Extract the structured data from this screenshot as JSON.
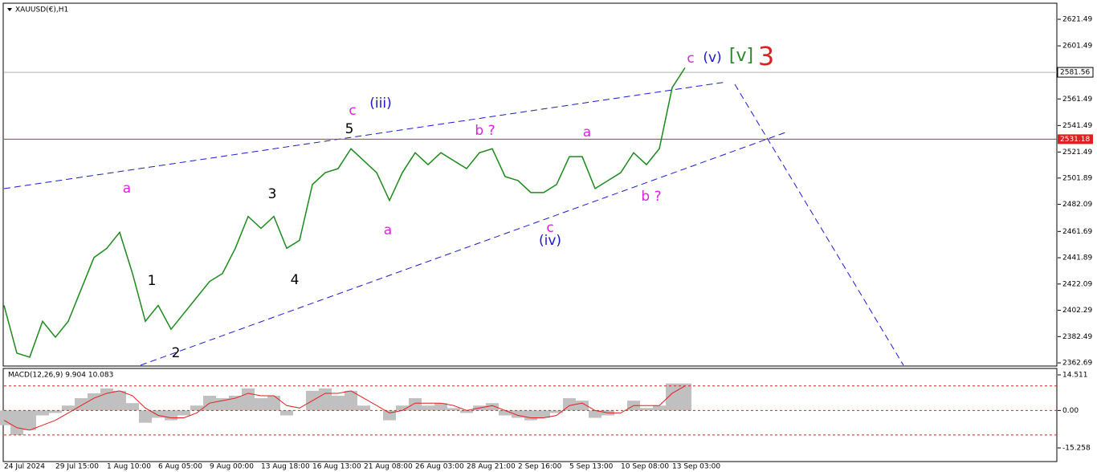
{
  "chart_data": [
    {
      "type": "line",
      "title": "XAUUSD(€),H1",
      "color": "#1a8a1a",
      "categories": [
        "24 Jul 2024",
        null,
        null,
        null,
        "29 Jul 15:00",
        null,
        null,
        null,
        "1 Aug 10:00",
        null,
        null,
        null,
        "6 Aug 05:00",
        null,
        null,
        null,
        "9 Aug 00:00",
        null,
        null,
        null,
        "13 Aug 18:00",
        null,
        null,
        null,
        "16 Aug 13:00",
        null,
        null,
        null,
        "21 Aug 08:00",
        null,
        null,
        null,
        "26 Aug 03:00",
        null,
        null,
        null,
        "28 Aug 21:00",
        null,
        null,
        null,
        "2 Sep 16:00",
        null,
        null,
        null,
        "5 Sep 13:00",
        null,
        null,
        null,
        "10 Sep 08:00",
        null,
        null,
        null,
        "13 Sep 03:00",
        null
      ],
      "values": [
        2406,
        2370,
        2367,
        2394,
        2382,
        2394,
        2418,
        2442,
        2449,
        2461,
        2430,
        2394,
        2406,
        2388,
        2400,
        2412,
        2424,
        2430,
        2449,
        2473,
        2464,
        2473,
        2449,
        2455,
        2497,
        2506,
        2509,
        2524,
        2515,
        2506,
        2485,
        2506,
        2521,
        2512,
        2521,
        2515,
        2509,
        2521,
        2524,
        2503,
        2500,
        2491,
        2491,
        2497,
        2518,
        2518,
        2494,
        2500,
        2506,
        2521,
        2512,
        2524,
        2570,
        2585
      ],
      "ylim": [
        2360.9,
        2633.0
      ],
      "yticks": [
        2621.49,
        2601.49,
        2561.49,
        2541.49,
        2521.49,
        2501.89,
        2482.09,
        2461.69,
        2441.89,
        2422.09,
        2402.29,
        2382.49,
        2362.69
      ],
      "current_price": 2581.56,
      "level": 2531.18,
      "level_color": "#e02020",
      "annotations": [
        {
          "text": "a",
          "color": "#e020e0"
        },
        {
          "text": "1",
          "color": "#000000"
        },
        {
          "text": "2",
          "color": "#000000"
        },
        {
          "text": "3",
          "color": "#000000"
        },
        {
          "text": "4",
          "color": "#000000"
        },
        {
          "text": "5",
          "color": "#000000"
        },
        {
          "text": "c",
          "color": "#e020e0"
        },
        {
          "text": "(iii)",
          "color": "#1a1acc"
        },
        {
          "text": "a",
          "color": "#e020e0"
        },
        {
          "text": "b ?",
          "color": "#e020e0"
        },
        {
          "text": "a",
          "color": "#e020e0"
        },
        {
          "text": "c",
          "color": "#e020e0"
        },
        {
          "text": "(iv)",
          "color": "#1a1acc"
        },
        {
          "text": "b ?",
          "color": "#e020e0"
        },
        {
          "text": "c",
          "color": "#e020e0"
        },
        {
          "text": "(v)",
          "color": "#1a1acc"
        },
        {
          "text": "[v]",
          "color": "#2a8a2a"
        },
        {
          "text": "3",
          "color": "#e02020"
        }
      ]
    },
    {
      "type": "bar",
      "title": "MACD(12,26,9) 9.904 10.083",
      "color": "#c0c0c0",
      "values": [
        -6,
        -10,
        -8,
        -2,
        -1,
        2,
        5,
        7,
        9,
        8,
        3,
        -5,
        -3,
        -4,
        -2,
        2,
        6,
        5,
        6,
        9,
        5,
        6,
        -2,
        0,
        8,
        9,
        6,
        8,
        2,
        0,
        -4,
        2,
        5,
        2,
        3,
        1,
        -1,
        2,
        3,
        -2,
        -3,
        -4,
        -3,
        -1,
        5,
        4,
        -3,
        -2,
        0,
        4,
        1,
        2,
        11,
        11
      ],
      "signal": {
        "color": "#e02020",
        "values": [
          -4,
          -7,
          -8,
          -6,
          -4,
          -1,
          2,
          5,
          7,
          8,
          6,
          1,
          -2,
          -3,
          -3,
          -1,
          3,
          4,
          5,
          7,
          6,
          6,
          2,
          1,
          4,
          7,
          7,
          8,
          5,
          2,
          -1,
          0,
          3,
          3,
          3,
          2,
          0,
          1,
          2,
          0,
          -2,
          -3,
          -3,
          -2,
          2,
          3,
          0,
          -1,
          -1,
          2,
          2,
          2,
          7,
          10
        ]
      },
      "ylim": [
        -15.258,
        14.511
      ],
      "yticks": [
        14.511,
        {
          "value": 0,
          "label": "0.00"
        },
        -15.258
      ],
      "levels": [
        10,
        0,
        -10
      ]
    }
  ]
}
